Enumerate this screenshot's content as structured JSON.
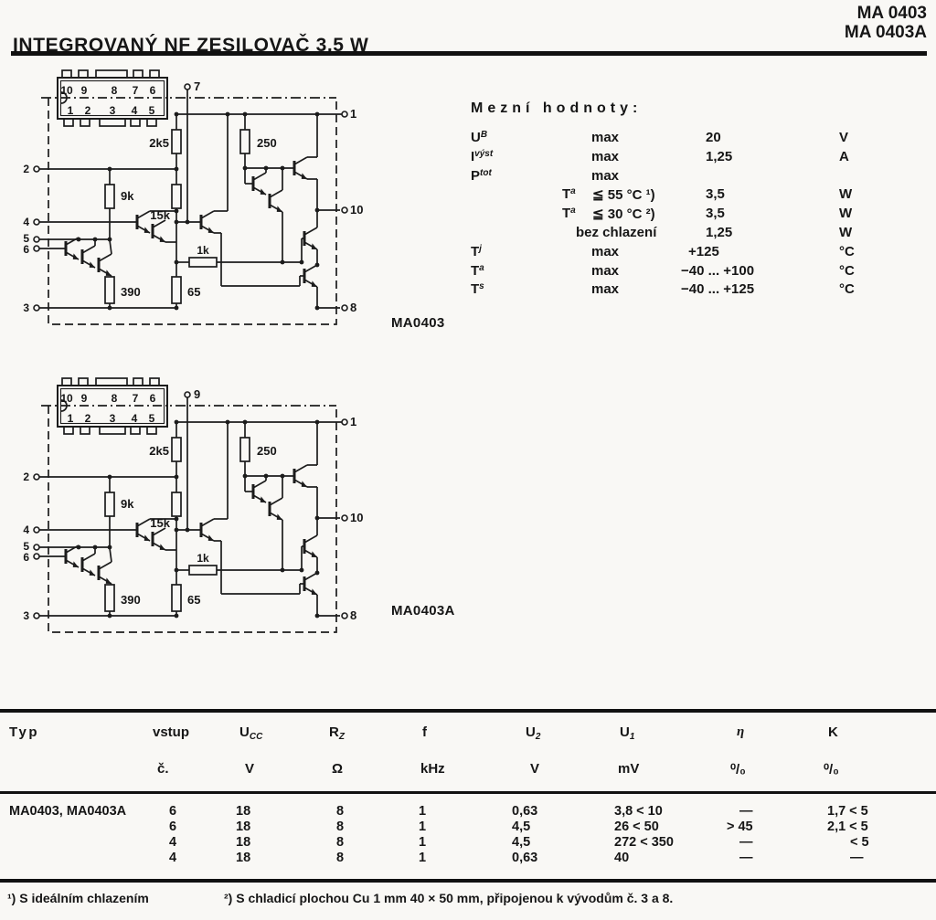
{
  "page": {
    "title": "INTEGROVANÝ NF ZESILOVAČ 3,5 W",
    "part_numbers": [
      "MA 0403",
      "MA 0403A"
    ]
  },
  "limits": {
    "title": "Mezní hodnoty:",
    "rows": [
      {
        "sym": "U",
        "sub": "B",
        "cond": "max",
        "val": "20",
        "unit": "V"
      },
      {
        "sym": "I",
        "sub": "výst",
        "cond": "max",
        "val": "1,25",
        "unit": "A"
      },
      {
        "sym": "P",
        "sub": "tot",
        "cond": "max",
        "val": "",
        "unit": ""
      },
      {
        "sym2": "T",
        "sub2": "a",
        "cond": "≦ 55 °C ¹)",
        "val": "3,5",
        "unit": "W"
      },
      {
        "sym2": "T",
        "sub2": "a",
        "cond": "≦ 30 °C ²)",
        "val": "3,5",
        "unit": "W"
      },
      {
        "cond2": "bez chlazení",
        "val": "1,25",
        "unit": "W"
      },
      {
        "sym": "T",
        "sub": "j",
        "cond": "max",
        "val": "+125",
        "unit": "°C"
      },
      {
        "sym": "T",
        "sub": "a",
        "cond": "max",
        "val": "−40 ... +100",
        "unit": "°C"
      },
      {
        "sym": "T",
        "sub": "s",
        "cond": "max",
        "val": "−40 ... +125",
        "unit": "°C"
      }
    ]
  },
  "schematics": [
    {
      "caption": "MA0403",
      "top_pin": "7",
      "package_top": [
        "10",
        "9",
        "8",
        "7",
        "6"
      ],
      "package_bottom": [
        "1",
        "2",
        "3",
        "4",
        "5"
      ],
      "left_pins": [
        "2",
        "4",
        "5",
        "6",
        "3"
      ],
      "right_pins": [
        "1",
        "10",
        "8"
      ],
      "resistors": [
        "2k5",
        "250",
        "9k",
        "15k",
        "1k",
        "390",
        "65"
      ]
    },
    {
      "caption": "MA0403A",
      "top_pin": "9",
      "package_top": [
        "10",
        "9",
        "8",
        "7",
        "6"
      ],
      "package_bottom": [
        "1",
        "2",
        "3",
        "4",
        "5"
      ],
      "left_pins": [
        "2",
        "4",
        "5",
        "6",
        "3"
      ],
      "right_pins": [
        "1",
        "10",
        "8"
      ],
      "resistors": [
        "2k5",
        "250",
        "9k",
        "15k",
        "1k",
        "390",
        "65"
      ]
    }
  ],
  "table": {
    "headers": [
      {
        "main": "Typ",
        "sub": ""
      },
      {
        "main": "vstup",
        "sub": "č."
      },
      {
        "main": "U",
        "msub": "CC",
        "sub": "V"
      },
      {
        "main": "R",
        "msub": "Z",
        "sub": "Ω"
      },
      {
        "main": "f",
        "sub": "kHz"
      },
      {
        "main": "U",
        "msub": "2",
        "sub": "V"
      },
      {
        "main": "U",
        "msub": "1",
        "sub": "mV"
      },
      {
        "main": "η",
        "italic": true,
        "sub": "⁰/₀"
      },
      {
        "main": "K",
        "sub": "⁰/₀"
      }
    ],
    "row_label": "MA0403, MA0403A",
    "rows": [
      [
        "6",
        "18",
        "8",
        "1",
        "0,63",
        "3,8 < 10",
        "—",
        "1,7 < 5"
      ],
      [
        "6",
        "18",
        "8",
        "1",
        "4,5",
        "26 < 50",
        "> 45",
        "2,1 < 5"
      ],
      [
        "4",
        "18",
        "8",
        "1",
        "4,5",
        "272 < 350",
        "—",
        "< 5"
      ],
      [
        "4",
        "18",
        "8",
        "1",
        "0,63",
        "40",
        "—",
        "—"
      ]
    ]
  },
  "footnotes": [
    {
      "mark": "¹)",
      "text": "S ideálním chlazením"
    },
    {
      "mark": "²)",
      "text": "S chladicí plochou Cu 1 mm 40 × 50 mm, připojenou k vývodům č. 3 a 8."
    }
  ]
}
